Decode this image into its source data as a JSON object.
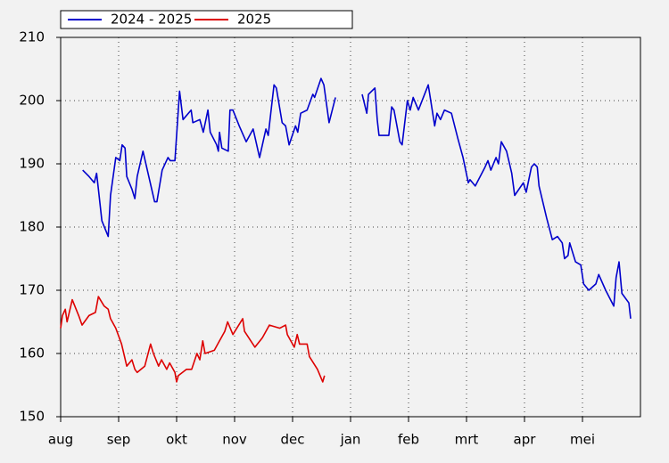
{
  "chart_data": {
    "type": "line",
    "xlim": [
      0,
      10
    ],
    "xticks": [
      {
        "value": 0,
        "label": "aug"
      },
      {
        "value": 1,
        "label": "sep"
      },
      {
        "value": 2,
        "label": "okt"
      },
      {
        "value": 3,
        "label": "nov"
      },
      {
        "value": 4,
        "label": "dec"
      },
      {
        "value": 5,
        "label": "jan"
      },
      {
        "value": 6,
        "label": "feb"
      },
      {
        "value": 7,
        "label": "mrt"
      },
      {
        "value": 8,
        "label": "apr"
      },
      {
        "value": 9,
        "label": "mei"
      }
    ],
    "ylim": [
      150,
      210
    ],
    "yticks": [
      150,
      160,
      170,
      180,
      190,
      200,
      210
    ],
    "grid": true,
    "legend": "top",
    "series": [
      {
        "name": "2024 - 2025",
        "color": "#0000cc",
        "x": [
          0.38,
          0.49,
          0.58,
          0.62,
          0.65,
          0.71,
          0.82,
          0.86,
          0.95,
          1.02,
          1.06,
          1.11,
          1.14,
          1.23,
          1.28,
          1.32,
          1.42,
          1.52,
          1.62,
          1.66,
          1.75,
          1.85,
          1.89,
          1.97,
          2.05,
          2.11,
          2.25,
          2.28,
          2.4,
          2.46,
          2.54,
          2.58,
          2.69,
          2.72,
          2.74,
          2.78,
          2.89,
          2.92,
          2.97,
          3.08,
          3.2,
          3.32,
          3.43,
          3.54,
          3.58,
          3.68,
          3.72,
          3.82,
          3.88,
          3.94,
          4.05,
          4.09,
          4.14,
          4.25,
          4.35,
          4.38,
          4.49,
          4.54,
          4.63,
          4.74,
          5.1,
          5.2,
          5.28,
          5.31,
          5.42,
          5.46,
          5.49,
          5.66,
          5.71,
          5.75,
          5.85,
          5.89,
          5.98,
          6.03,
          6.08,
          6.17,
          6.34,
          6.4,
          6.45,
          6.49,
          6.55,
          6.62,
          6.74,
          6.85,
          6.94,
          7.03,
          7.06,
          7.15,
          7.32,
          7.37,
          7.42,
          7.51,
          7.55,
          7.6,
          7.69,
          7.78,
          7.83,
          7.98,
          8.03,
          8.12,
          8.17,
          8.22,
          8.25,
          8.38,
          8.48,
          8.57,
          8.65,
          8.69,
          8.75,
          8.78,
          8.88,
          8.97,
          9.02,
          9.11,
          9.23,
          9.28,
          9.4,
          9.54,
          9.58,
          9.63,
          9.68,
          9.8,
          9.83
        ],
        "values": [
          189,
          188,
          187,
          188.5,
          186,
          181,
          178.5,
          185,
          191,
          190.5,
          193,
          192.5,
          188,
          186,
          184.5,
          188,
          192,
          188,
          184,
          184,
          189,
          191,
          190.5,
          190.5,
          201.5,
          197,
          198.5,
          196.5,
          197,
          195,
          198.5,
          195,
          193,
          192,
          195,
          192.5,
          192,
          198.5,
          198.5,
          196,
          193.5,
          195.5,
          191,
          195.5,
          194.5,
          202.5,
          202,
          196.5,
          196,
          193,
          196,
          195,
          198,
          198.5,
          201,
          200.5,
          203.5,
          202.5,
          196.5,
          200.5,
          null,
          201,
          198,
          201,
          202,
          197,
          194.5,
          194.5,
          199,
          198.5,
          193.5,
          193,
          200,
          198.5,
          200.5,
          198.5,
          202.5,
          199,
          196,
          198,
          197,
          198.5,
          198,
          194,
          191,
          187,
          187.5,
          186.5,
          189.5,
          190.5,
          189,
          191,
          190,
          193.5,
          192,
          188.5,
          185,
          187,
          185.5,
          189.5,
          190,
          189.5,
          186.5,
          181.5,
          178,
          178.5,
          177.5,
          175,
          175.5,
          177.5,
          174.5,
          174,
          171,
          170,
          171,
          172.5,
          170,
          167.5,
          172,
          174.5,
          169.5,
          168,
          165.5
        ]
      },
      {
        "name": "2025",
        "color": "#dd0000",
        "x": [
          0.0,
          0.03,
          0.08,
          0.11,
          0.2,
          0.31,
          0.37,
          0.49,
          0.6,
          0.65,
          0.75,
          0.82,
          0.86,
          0.95,
          1.05,
          1.14,
          1.23,
          1.28,
          1.32,
          1.45,
          1.55,
          1.6,
          1.69,
          1.74,
          1.83,
          1.88,
          1.97,
          2.0,
          2.03,
          2.17,
          2.26,
          2.35,
          2.4,
          2.45,
          2.49,
          2.65,
          2.74,
          2.83,
          2.88,
          2.97,
          3.14,
          3.17,
          3.35,
          3.48,
          3.6,
          3.78,
          3.88,
          3.91,
          4.03,
          4.08,
          4.12,
          4.25,
          4.29,
          4.43,
          4.52,
          4.55
        ],
        "values": [
          164,
          166,
          167,
          165,
          168.5,
          166,
          164.5,
          166,
          166.5,
          169,
          167.5,
          167,
          165.5,
          164,
          161.5,
          158,
          159,
          157.5,
          157,
          158,
          161.5,
          160,
          158,
          159,
          157.5,
          158.5,
          157,
          155.5,
          156.5,
          157.5,
          157.5,
          160,
          159,
          162,
          160,
          160.5,
          162,
          163.5,
          165,
          163,
          165.5,
          163.5,
          161,
          162.5,
          164.5,
          164,
          164.5,
          163,
          161,
          163,
          161.5,
          161.5,
          159.5,
          157.5,
          155.5,
          156.5
        ]
      }
    ]
  }
}
